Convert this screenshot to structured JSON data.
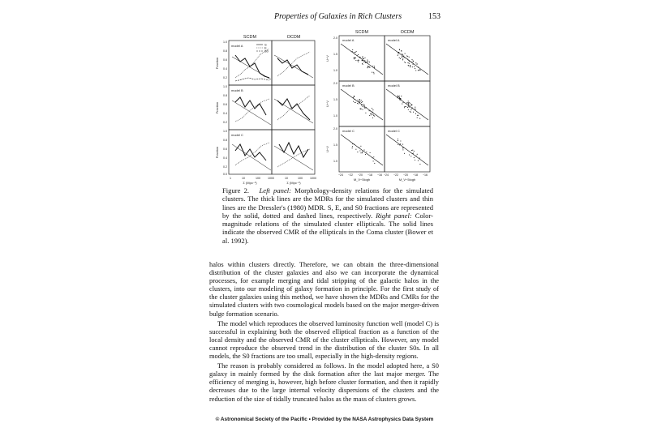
{
  "header": {
    "running_title": "Properties of Galaxies in Rich Clusters",
    "page_number": "153"
  },
  "figure": {
    "left_panel": {
      "column_titles": [
        "SCDM",
        "OCDM"
      ],
      "model_labels": [
        "model A",
        "model B",
        "model C"
      ],
      "y_axis_label": "Fraction",
      "y_ticks": [
        "1.0",
        "0.8",
        "0.6",
        "0.4",
        "0.2",
        "0.0"
      ],
      "x_ticks": [
        "1",
        "10",
        "100",
        "1000"
      ],
      "x_axis_label": "Σ (Mpc⁻²)",
      "legend": [
        "S",
        "E",
        "S0"
      ]
    },
    "right_panel": {
      "column_titles": [
        "SCDM",
        "OCDM"
      ],
      "model_labels": [
        "model A",
        "model B",
        "model C"
      ],
      "y_axis_label": "U−V",
      "y_ticks": [
        "2.0",
        "1.5",
        "1.0"
      ],
      "x_ticks": [
        "−24",
        "−22",
        "−20",
        "−18",
        "−16"
      ],
      "x_axis_label": "M_V−5logh"
    }
  },
  "caption": {
    "label": "Figure 2.",
    "left_label": "Left panel:",
    "part1": " Morphology-density relations for the simulated clusters. The thick lines are the MDRs for the simulated clusters and thin lines are the Dressler's (1980) MDR. S, E, and S0 fractions are represented by the solid, dotted and dashed lines, respectively. ",
    "right_label": "Right panel:",
    "part2": " Color-magnitude relations of the simulated cluster ellipticals. The solid lines indicate the observed CMR of the ellipticals in the Coma cluster (Bower et al. 1992)."
  },
  "body": {
    "p1": "halos within clusters directly. Therefore, we can obtain the three-dimensional distribution of the cluster galaxies and also we can incorporate the dynamical processes, for example merging and tidal stripping of the galactic halos in the clusters, into our modeling of galaxy formation in principle. For the first study of the cluster galaxies using this method, we have shown the MDRs and CMRs for the simulated clusters with two cosmological models based on the major merger-driven bulge formation scenario.",
    "p2": "The model which reproduces the observed luminosity function well (model C) is successful in explaining both the observed elliptical fraction as a function of the local density and the observed CMR of the cluster ellipticals. However, any model cannot reproduce the observed trend in the distribution of the cluster S0s. In all models, the S0 fractions are too small, especially in the high-density regions.",
    "p3": "The reason is probably considered as follows. In the model adopted here, a S0 galaxy in mainly formed by the disk formation after the last major merger. The efficiency of merging is, however, high before cluster formation, and then it rapidly decreases due to the large internal velocity dispersions of the clusters and the reduction of the size of tidally truncated halos as the mass of clusters grows."
  },
  "footer": {
    "text": "© Astronomical Society of the Pacific • Provided by the NASA Astrophysics Data System"
  }
}
